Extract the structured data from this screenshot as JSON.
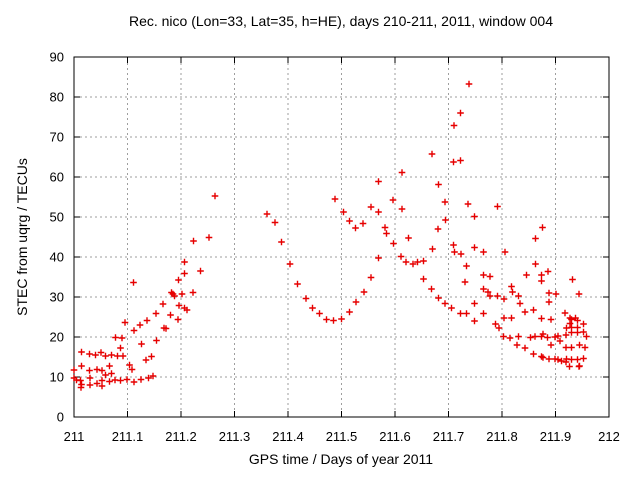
{
  "chart_data": {
    "type": "scatter",
    "title": "Rec. nico (Lon=33, Lat=35, h=HE), days 210-211, 2011, window 004",
    "xlabel": "GPS time / Days of year 2011",
    "ylabel": "STEC from uqrg / TECUs",
    "xlim": [
      211,
      212
    ],
    "ylim": [
      0,
      90
    ],
    "grid": true,
    "legend": "none",
    "marker": "plus",
    "marker_color": "#e60000",
    "grid_color": "#9e9e9e",
    "axis_color": "#000000",
    "xticks": [
      {
        "v": 211.0,
        "label": "211"
      },
      {
        "v": 211.1,
        "label": "211.1"
      },
      {
        "v": 211.2,
        "label": "211.2"
      },
      {
        "v": 211.3,
        "label": "211.3"
      },
      {
        "v": 211.4,
        "label": "211.4"
      },
      {
        "v": 211.5,
        "label": "211.5"
      },
      {
        "v": 211.6,
        "label": "211.6"
      },
      {
        "v": 211.7,
        "label": "211.7"
      },
      {
        "v": 211.8,
        "label": "211.8"
      },
      {
        "v": 211.9,
        "label": "211.9"
      },
      {
        "v": 212.0,
        "label": "212"
      }
    ],
    "yticks": [
      {
        "v": 0,
        "label": "0"
      },
      {
        "v": 10,
        "label": "10"
      },
      {
        "v": 20,
        "label": "20"
      },
      {
        "v": 30,
        "label": "30"
      },
      {
        "v": 40,
        "label": "40"
      },
      {
        "v": 50,
        "label": "50"
      },
      {
        "v": 60,
        "label": "60"
      },
      {
        "v": 70,
        "label": "70"
      },
      {
        "v": 80,
        "label": "80"
      },
      {
        "v": 90,
        "label": "90"
      }
    ],
    "points": [
      [
        211.0,
        9.7
      ],
      [
        211.0,
        11.7
      ],
      [
        211.005,
        9.3
      ],
      [
        211.012,
        9.1
      ],
      [
        211.013,
        7.4
      ],
      [
        211.014,
        16.2
      ],
      [
        211.014,
        12.8
      ],
      [
        211.014,
        8.1
      ],
      [
        211.029,
        15.8
      ],
      [
        211.029,
        11.6
      ],
      [
        211.03,
        9.7
      ],
      [
        211.03,
        8.0
      ],
      [
        211.04,
        15.5
      ],
      [
        211.043,
        11.9
      ],
      [
        211.043,
        8.4
      ],
      [
        211.05,
        16.1
      ],
      [
        211.052,
        11.6
      ],
      [
        211.052,
        9.1
      ],
      [
        211.052,
        7.7
      ],
      [
        211.059,
        15.3
      ],
      [
        211.059,
        10.5
      ],
      [
        211.066,
        12.8
      ],
      [
        211.066,
        8.9
      ],
      [
        211.07,
        15.5
      ],
      [
        211.07,
        10.9
      ],
      [
        211.077,
        9.2
      ],
      [
        211.078,
        19.9
      ],
      [
        211.081,
        15.2
      ],
      [
        211.087,
        17.2
      ],
      [
        211.087,
        9.1
      ],
      [
        211.09,
        19.8
      ],
      [
        211.092,
        15.3
      ],
      [
        211.095,
        23.6
      ],
      [
        211.099,
        9.4
      ],
      [
        211.104,
        13.0
      ],
      [
        211.108,
        11.9
      ],
      [
        211.111,
        33.6
      ],
      [
        211.112,
        21.6
      ],
      [
        211.112,
        8.8
      ],
      [
        211.123,
        23.0
      ],
      [
        211.125,
        9.4
      ],
      [
        211.126,
        18.3
      ],
      [
        211.135,
        14.3
      ],
      [
        211.136,
        24.1
      ],
      [
        211.139,
        9.7
      ],
      [
        211.145,
        15.1
      ],
      [
        211.148,
        10.3
      ],
      [
        211.153,
        25.9
      ],
      [
        211.154,
        19.1
      ],
      [
        211.166,
        28.3
      ],
      [
        211.168,
        22.2
      ],
      [
        211.172,
        22.1
      ],
      [
        211.18,
        25.5
      ],
      [
        211.182,
        31.1
      ],
      [
        211.185,
        30.7
      ],
      [
        211.188,
        30.3
      ],
      [
        211.194,
        24.4
      ],
      [
        211.195,
        34.2
      ],
      [
        211.196,
        27.9
      ],
      [
        211.202,
        30.8
      ],
      [
        211.207,
        38.7
      ],
      [
        211.207,
        35.9
      ],
      [
        211.207,
        27.3
      ],
      [
        211.211,
        26.8
      ],
      [
        211.222,
        31.1
      ],
      [
        211.223,
        44.0
      ],
      [
        211.236,
        36.5
      ],
      [
        211.252,
        44.9
      ],
      [
        211.264,
        55.2
      ],
      [
        211.361,
        50.7
      ],
      [
        211.376,
        48.6
      ],
      [
        211.388,
        43.8
      ],
      [
        211.404,
        38.3
      ],
      [
        211.418,
        33.3
      ],
      [
        211.434,
        29.6
      ],
      [
        211.446,
        27.2
      ],
      [
        211.459,
        25.9
      ],
      [
        211.472,
        24.4
      ],
      [
        211.485,
        24.1
      ],
      [
        211.5,
        24.5
      ],
      [
        211.515,
        26.3
      ],
      [
        211.527,
        28.7
      ],
      [
        211.542,
        31.2
      ],
      [
        211.555,
        34.9
      ],
      [
        211.569,
        39.7
      ],
      [
        211.488,
        54.5
      ],
      [
        211.504,
        51.3
      ],
      [
        211.515,
        49.0
      ],
      [
        211.526,
        47.3
      ],
      [
        211.54,
        48.4
      ],
      [
        211.555,
        52.5
      ],
      [
        211.569,
        58.9
      ],
      [
        211.569,
        51.2
      ],
      [
        211.581,
        47.4
      ],
      [
        211.584,
        45.9
      ],
      [
        211.596,
        54.3
      ],
      [
        211.597,
        43.4
      ],
      [
        211.613,
        61.1
      ],
      [
        211.613,
        52.0
      ],
      [
        211.611,
        40.1
      ],
      [
        211.621,
        38.7
      ],
      [
        211.625,
        44.8
      ],
      [
        211.634,
        38.2
      ],
      [
        211.642,
        38.7
      ],
      [
        211.653,
        39.0
      ],
      [
        211.653,
        34.5
      ],
      [
        211.668,
        32.0
      ],
      [
        211.669,
        65.8
      ],
      [
        211.67,
        42.0
      ],
      [
        211.68,
        47.0
      ],
      [
        211.681,
        58.1
      ],
      [
        211.681,
        29.8
      ],
      [
        211.693,
        53.7
      ],
      [
        211.693,
        28.4
      ],
      [
        211.694,
        49.3
      ],
      [
        211.706,
        27.3
      ],
      [
        211.709,
        63.8
      ],
      [
        211.709,
        43.0
      ],
      [
        211.71,
        72.9
      ],
      [
        211.711,
        41.2
      ],
      [
        211.722,
        76.0
      ],
      [
        211.722,
        64.1
      ],
      [
        211.722,
        25.9
      ],
      [
        211.723,
        40.7
      ],
      [
        211.731,
        33.7
      ],
      [
        211.734,
        37.8
      ],
      [
        211.734,
        25.9
      ],
      [
        211.736,
        53.3
      ],
      [
        211.738,
        83.2
      ],
      [
        211.749,
        50.1
      ],
      [
        211.749,
        42.4
      ],
      [
        211.749,
        28.4
      ],
      [
        211.749,
        24.0
      ],
      [
        211.765,
        41.2
      ],
      [
        211.765,
        35.5
      ],
      [
        211.765,
        32.0
      ],
      [
        211.765,
        25.9
      ],
      [
        211.774,
        31.2
      ],
      [
        211.778,
        35.1
      ],
      [
        211.778,
        30.3
      ],
      [
        211.788,
        23.3
      ],
      [
        211.792,
        52.6
      ],
      [
        211.792,
        30.3
      ],
      [
        211.794,
        22.3
      ],
      [
        211.803,
        20.1
      ],
      [
        211.804,
        29.5
      ],
      [
        211.804,
        24.7
      ],
      [
        211.806,
        41.3
      ],
      [
        211.815,
        19.8
      ],
      [
        211.818,
        32.6
      ],
      [
        211.818,
        24.8
      ],
      [
        211.82,
        31.2
      ],
      [
        211.828,
        18.0
      ],
      [
        211.831,
        30.3
      ],
      [
        211.831,
        20.1
      ],
      [
        211.834,
        28.4
      ],
      [
        211.843,
        26.2
      ],
      [
        211.843,
        17.3
      ],
      [
        211.846,
        35.5
      ],
      [
        211.853,
        19.9
      ],
      [
        211.859,
        26.7
      ],
      [
        211.859,
        15.7
      ],
      [
        211.862,
        20.1
      ],
      [
        211.863,
        44.6
      ],
      [
        211.863,
        38.2
      ],
      [
        211.874,
        35.5
      ],
      [
        211.874,
        34.0
      ],
      [
        211.874,
        24.6
      ],
      [
        211.874,
        20.1
      ],
      [
        211.874,
        15.1
      ],
      [
        211.876,
        47.4
      ],
      [
        211.877,
        20.8
      ],
      [
        211.877,
        14.9
      ],
      [
        211.885,
        19.9
      ],
      [
        211.886,
        36.4
      ],
      [
        211.888,
        31.0
      ],
      [
        211.888,
        28.7
      ],
      [
        211.888,
        14.5
      ],
      [
        211.892,
        24.4
      ],
      [
        211.892,
        18.0
      ],
      [
        211.899,
        20.0
      ],
      [
        211.899,
        14.5
      ],
      [
        211.901,
        30.8
      ],
      [
        211.905,
        20.3
      ],
      [
        211.905,
        14.4
      ],
      [
        211.908,
        19.0
      ],
      [
        211.911,
        14.0
      ],
      [
        211.918,
        26.0
      ],
      [
        211.92,
        20.5
      ],
      [
        211.92,
        17.4
      ],
      [
        211.92,
        13.8
      ],
      [
        211.921,
        22.2
      ],
      [
        211.921,
        14.5
      ],
      [
        211.926,
        12.6
      ],
      [
        211.927,
        24.7
      ],
      [
        211.927,
        23.4
      ],
      [
        211.93,
        24.4
      ],
      [
        211.93,
        22.4
      ],
      [
        211.93,
        21.1
      ],
      [
        211.93,
        17.4
      ],
      [
        211.93,
        14.4
      ],
      [
        211.932,
        34.4
      ],
      [
        211.937,
        24.7
      ],
      [
        211.941,
        24.1
      ],
      [
        211.941,
        22.4
      ],
      [
        211.941,
        21.1
      ],
      [
        211.941,
        14.4
      ],
      [
        211.944,
        30.8
      ],
      [
        211.944,
        12.6
      ],
      [
        211.945,
        18.0
      ],
      [
        211.945,
        12.8
      ],
      [
        211.952,
        23.3
      ],
      [
        211.952,
        21.3
      ],
      [
        211.952,
        14.6
      ],
      [
        211.955,
        17.4
      ],
      [
        211.958,
        20.1
      ]
    ]
  }
}
